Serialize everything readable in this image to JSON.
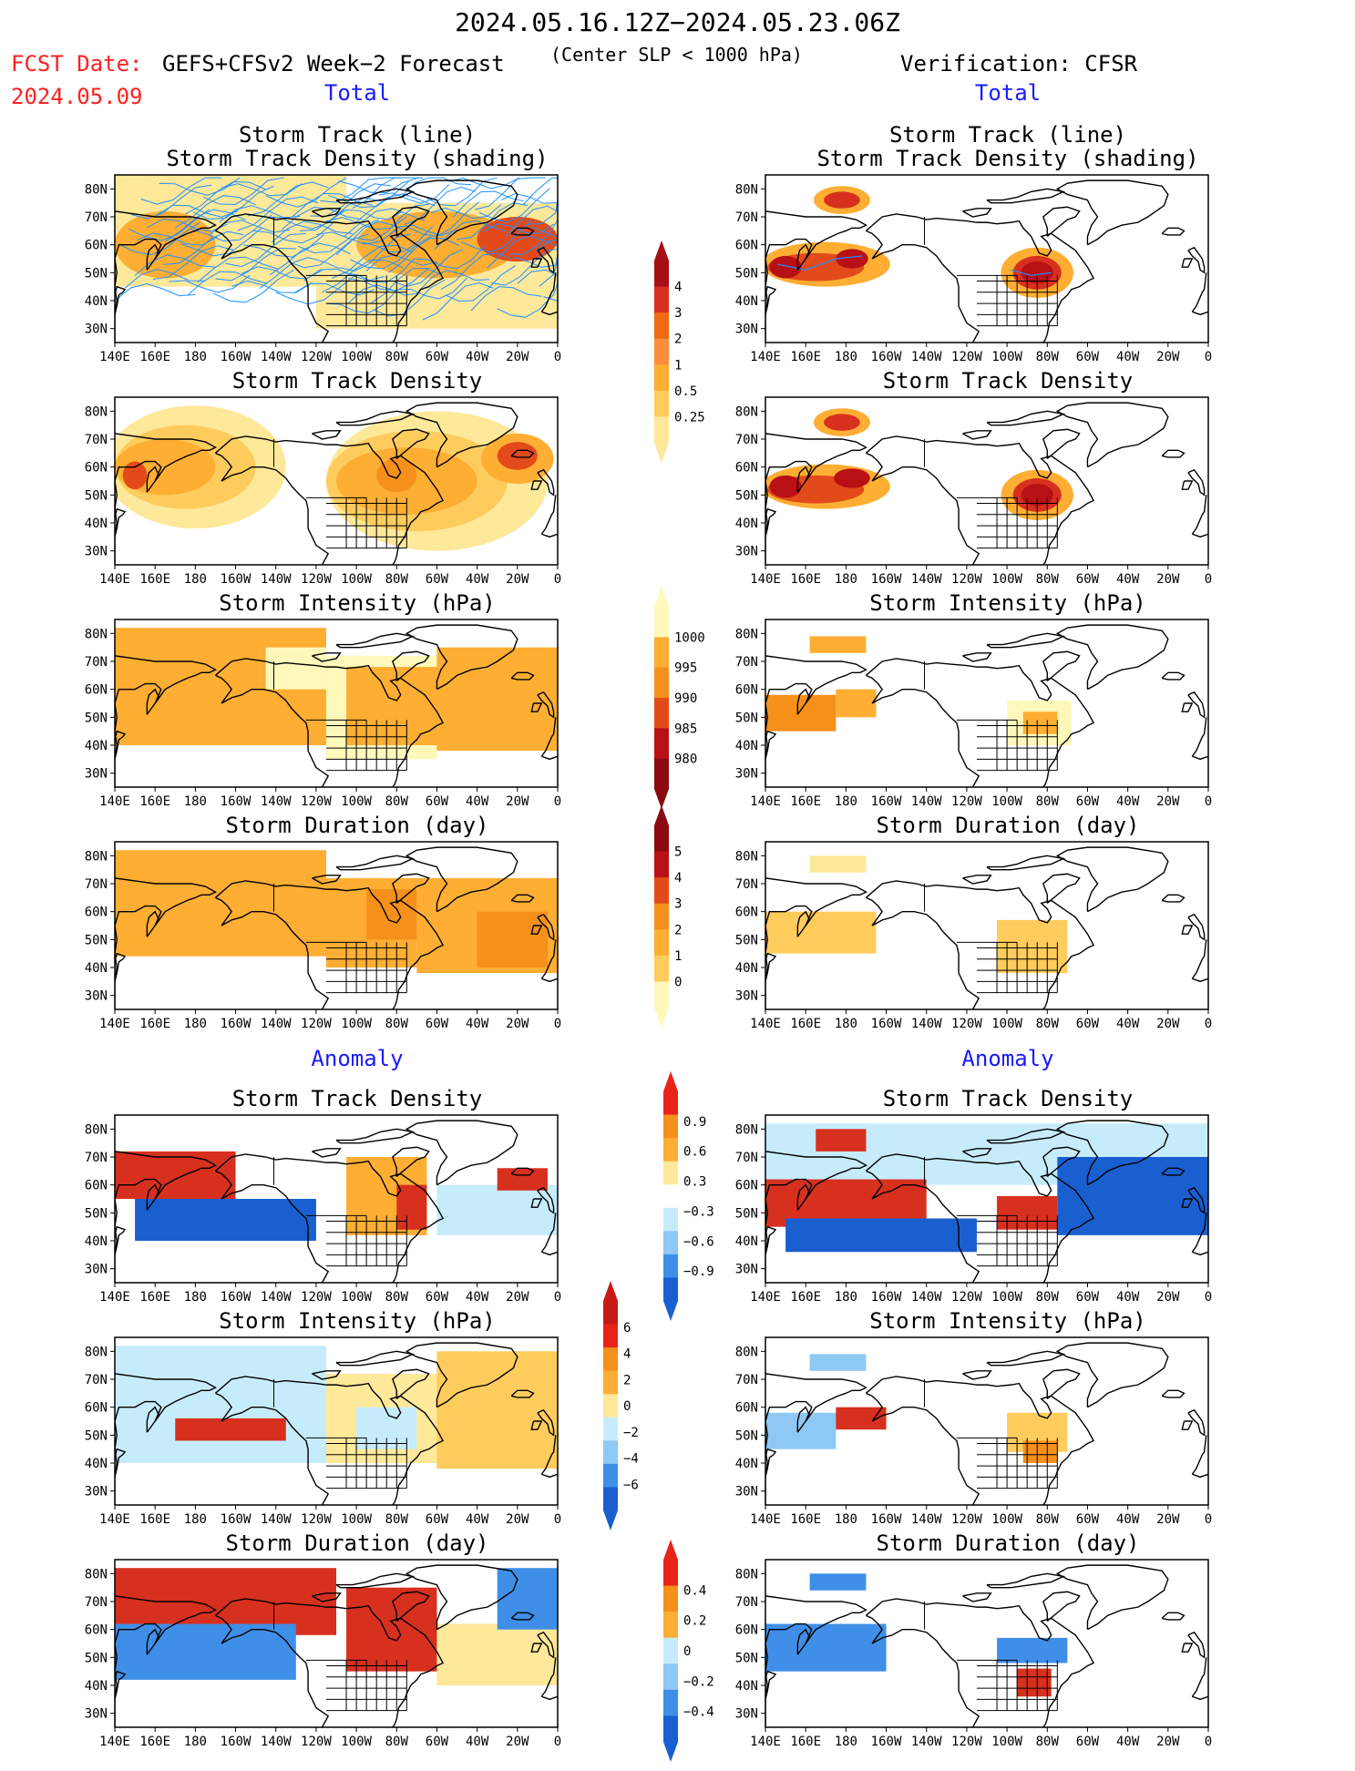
{
  "header": {
    "date_range": "2024.05.16.12Z−2024.05.23.06Z",
    "fcst_label": "FCST Date:",
    "fcst_date": "2024.05.09",
    "model": "GEFS+CFSv2 Week−2 Forecast",
    "criterion": "(Center SLP < 1000 hPa)",
    "verification": "Verification: CFSR"
  },
  "sections": {
    "total_left": "Total",
    "total_right": "Total",
    "anomaly_left": "Anomaly",
    "anomaly_right": "Anomaly"
  },
  "panel_titles": {
    "track_line": "Storm Track (line)",
    "track_shading": "Storm Track Density (shading)",
    "density": "Storm Track Density",
    "intensity": "Storm Intensity (hPa)",
    "duration": "Storm Duration (day)"
  },
  "axes": {
    "lon_labels": [
      "140E",
      "160E",
      "180",
      "160W",
      "140W",
      "120W",
      "100W",
      "80W",
      "60W",
      "40W",
      "20W",
      "0"
    ],
    "lat_labels": [
      "80N",
      "70N",
      "60N",
      "50N",
      "40N",
      "30N"
    ]
  },
  "colorbars": {
    "density_total": {
      "labels": [
        "4",
        "3",
        "2",
        "1",
        "0.5",
        "0.25"
      ],
      "colors": [
        "#a50f15",
        "#d7301f",
        "#f16913",
        "#fd8d3c",
        "#fdae33",
        "#fecc5c",
        "#fee89a"
      ]
    },
    "intensity_total": {
      "labels": [
        "1000",
        "995",
        "990",
        "985",
        "980"
      ],
      "colors": [
        "#fff8bb",
        "#fdae33",
        "#f5901a",
        "#e34a1a",
        "#b81015",
        "#8a0a10"
      ]
    },
    "duration_total": {
      "labels": [
        "5",
        "4",
        "3",
        "2",
        "1",
        "0"
      ],
      "colors": [
        "#8a0a10",
        "#b81015",
        "#e34a1a",
        "#f5901a",
        "#fdae33",
        "#fecc5c",
        "#fff8bb"
      ]
    },
    "density_anom": {
      "labels": [
        "0.9",
        "0.6",
        "0.3",
        "−0.3",
        "−0.6",
        "−0.9"
      ],
      "colors": [
        "#e8231a",
        "#f5901a",
        "#fdae33",
        "#fee89a",
        "#ffffff",
        "#c6ecfb",
        "#8ec8f5",
        "#3f8fe8",
        "#1a5fd0"
      ]
    },
    "intensity_anom": {
      "labels": [
        "6",
        "4",
        "2",
        "0",
        "−2",
        "−4",
        "−6"
      ],
      "colors": [
        "#c81a15",
        "#e8231a",
        "#f5901a",
        "#fdae33",
        "#fee89a",
        "#c6ecfb",
        "#8ec8f5",
        "#3f8fe8",
        "#1a5fd0"
      ]
    },
    "duration_anom": {
      "labels": [
        "0.4",
        "0.2",
        "0",
        "−0.2",
        "−0.4"
      ],
      "colors": [
        "#e8231a",
        "#f5901a",
        "#fdae33",
        "#c6ecfb",
        "#8ec8f5",
        "#3f8fe8",
        "#1a5fd0"
      ]
    }
  }
}
